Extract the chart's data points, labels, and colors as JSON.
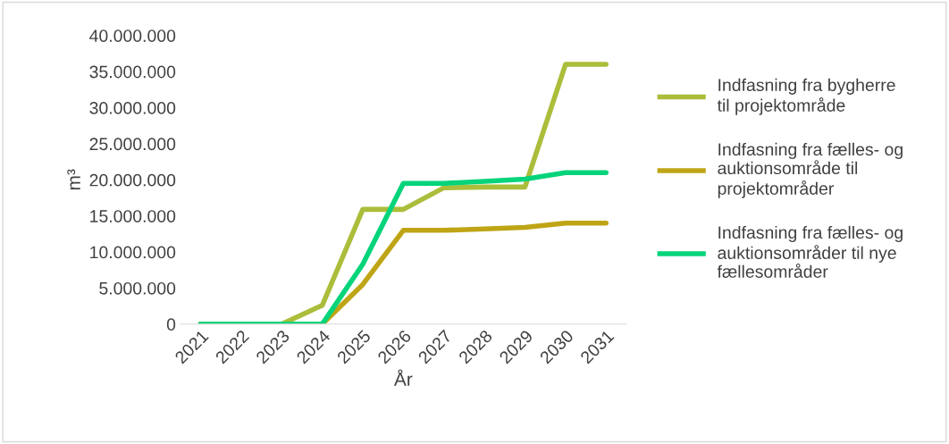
{
  "chart_data": {
    "type": "line",
    "xlabel": "År",
    "ylabel": "m³",
    "categories": [
      "2021",
      "2022",
      "2023",
      "2024",
      "2025",
      "2026",
      "2027",
      "2028",
      "2029",
      "2030",
      "2031"
    ],
    "series": [
      {
        "name": "Indfasning fra bygherre til projektområde",
        "color": "#abbd3a",
        "values": [
          0,
          0,
          0,
          2600000,
          15900000,
          15900000,
          18900000,
          19000000,
          19000000,
          36000000,
          36000000
        ]
      },
      {
        "name": "Indfasning fra fælles- og auktionsområde til projektområder",
        "color": "#bfa516",
        "values": [
          0,
          0,
          0,
          0,
          5500000,
          13000000,
          13000000,
          13200000,
          13400000,
          14000000,
          14000000
        ]
      },
      {
        "name": "Indfasning fra fælles- og auktionsområder til nye fællesområder",
        "color": "#05d47a",
        "values": [
          0,
          0,
          0,
          0,
          8300000,
          19500000,
          19500000,
          19800000,
          20100000,
          21000000,
          21000000
        ]
      }
    ],
    "ylim": [
      0,
      40000000
    ],
    "yticks": [
      {
        "value": 0,
        "label": "0"
      },
      {
        "value": 5000000,
        "label": "5.000.000"
      },
      {
        "value": 10000000,
        "label": "10.000.000"
      },
      {
        "value": 15000000,
        "label": "15.000.000"
      },
      {
        "value": 20000000,
        "label": "20.000.000"
      },
      {
        "value": 25000000,
        "label": "25.000.000"
      },
      {
        "value": 30000000,
        "label": "30.000.000"
      },
      {
        "value": 35000000,
        "label": "35.000.000"
      },
      {
        "value": 40000000,
        "label": "40.000.000"
      }
    ],
    "grid": false,
    "legend": "right",
    "marker": "none",
    "line_style": "solid"
  }
}
